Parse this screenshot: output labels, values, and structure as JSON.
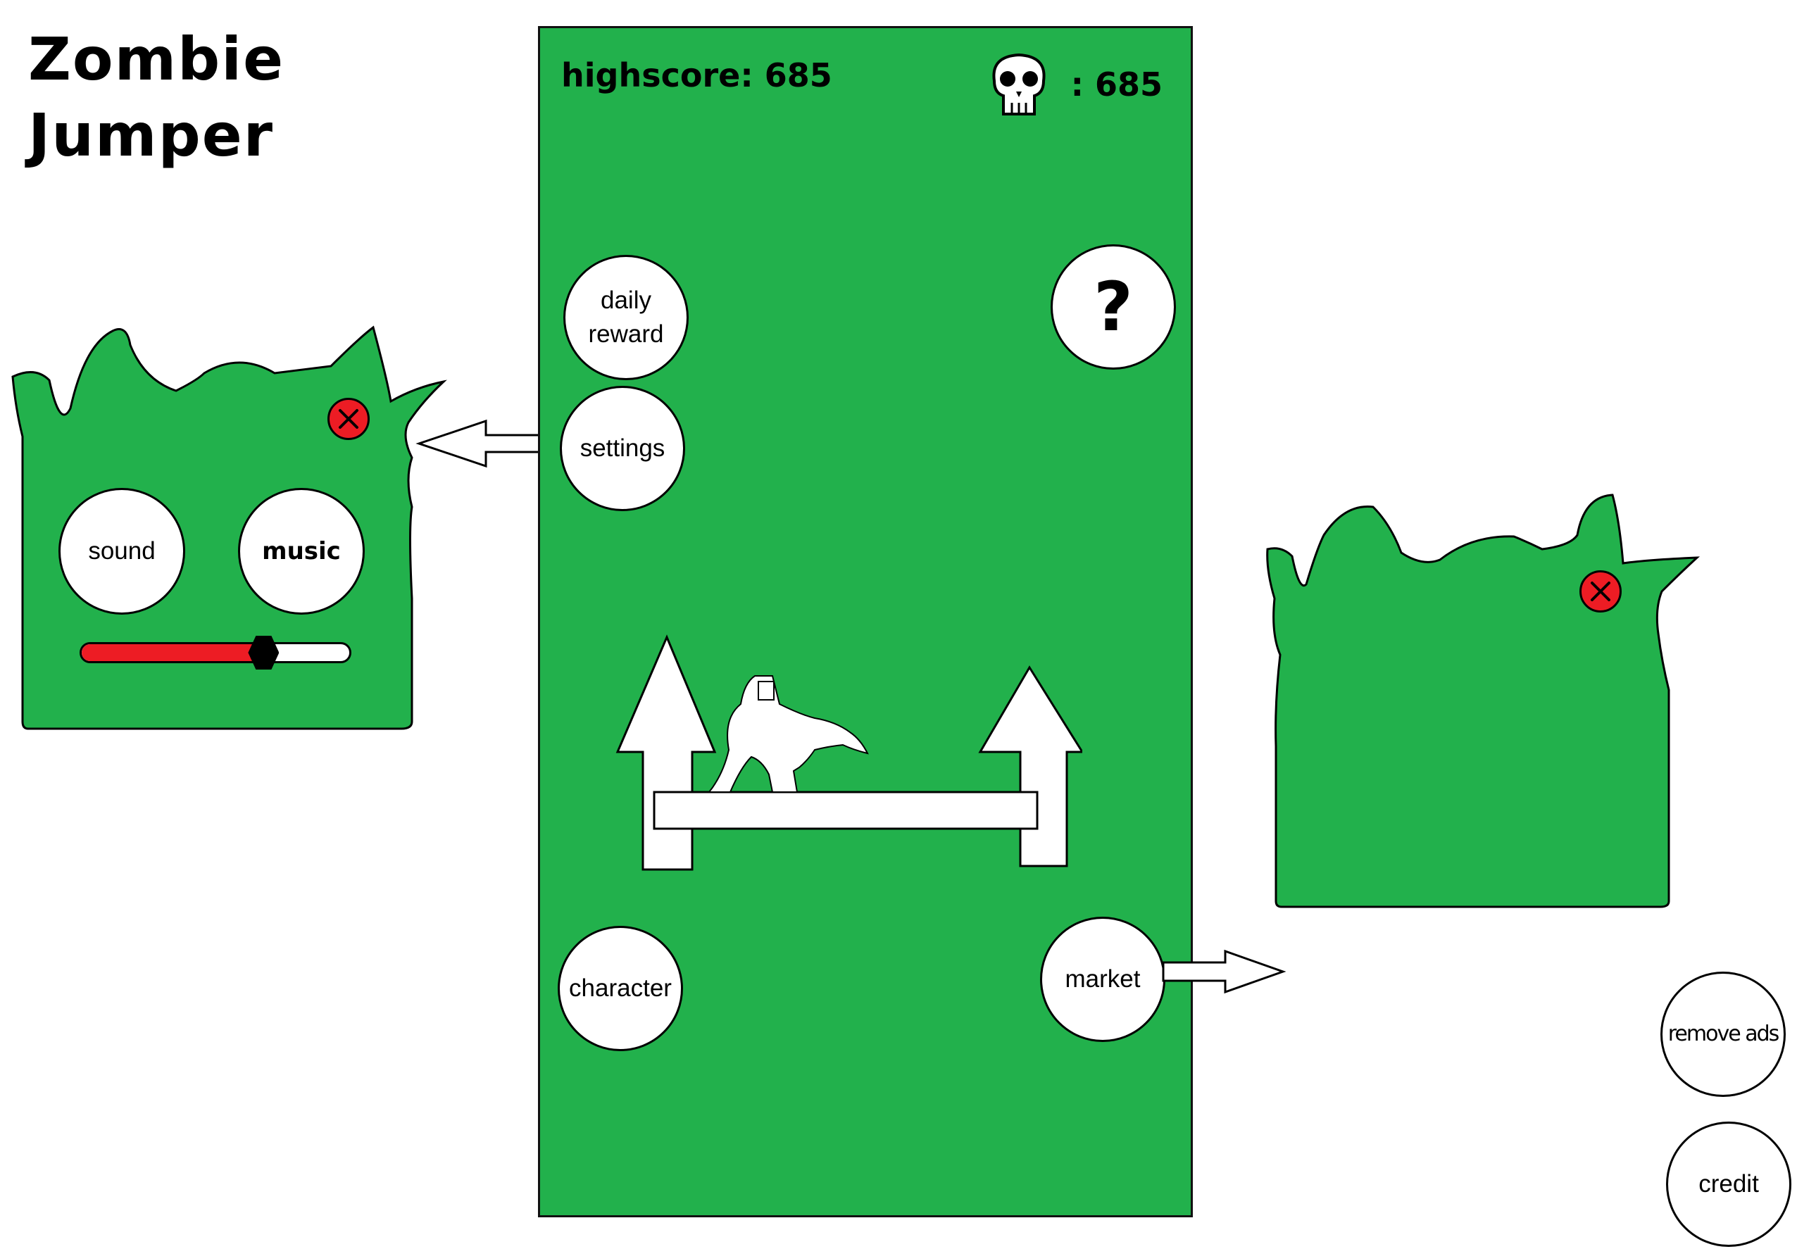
{
  "title": {
    "line1": "Zombie",
    "line2": "Jumper"
  },
  "header": {
    "highscore_label": "highscore: 685",
    "skulls_count": ": 685"
  },
  "menu": {
    "daily_reward_line1": "daily",
    "daily_reward_line2": "reward",
    "settings": "settings",
    "help": "?",
    "character": "character",
    "market": "market"
  },
  "settings_panel": {
    "sound": "sound",
    "music": "music",
    "volume_level": 0.68
  },
  "extra_buttons": {
    "remove_ads": "remove ads",
    "credit": "credit"
  },
  "colors": {
    "grass_green": "#22b14c",
    "close_red": "#ed1c24",
    "white": "#ffffff",
    "outline": "#000000"
  },
  "icons": [
    "skull-icon",
    "close-icon",
    "help-icon",
    "up-arrow-icon",
    "zombie-icon",
    "platform-icon",
    "pointer-arrow-icon"
  ]
}
